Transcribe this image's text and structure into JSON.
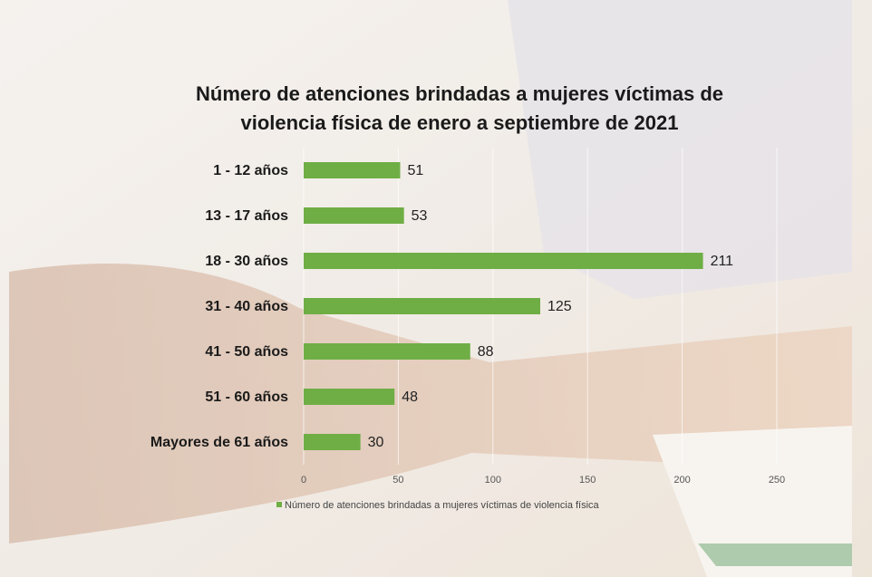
{
  "chart_data": {
    "type": "bar",
    "title": "Número de atenciones brindadas a mujeres víctimas de violencia física de enero a septiembre de 2021",
    "categories": [
      "1 - 12 años",
      "13 - 17 años",
      "18 - 30 años",
      "31 - 40 años",
      "41 - 50 años",
      "51 - 60 años",
      "Mayores de 61 años"
    ],
    "series": [
      {
        "name": "Número de atenciones brindadas a mujeres víctimas de violencia física",
        "color": "#6fae45",
        "values": [
          51,
          53,
          211,
          125,
          88,
          48,
          30
        ]
      }
    ],
    "xlim": [
      0,
      250
    ],
    "xticks": [
      0,
      50,
      100,
      150,
      200,
      250
    ],
    "grid": true
  }
}
